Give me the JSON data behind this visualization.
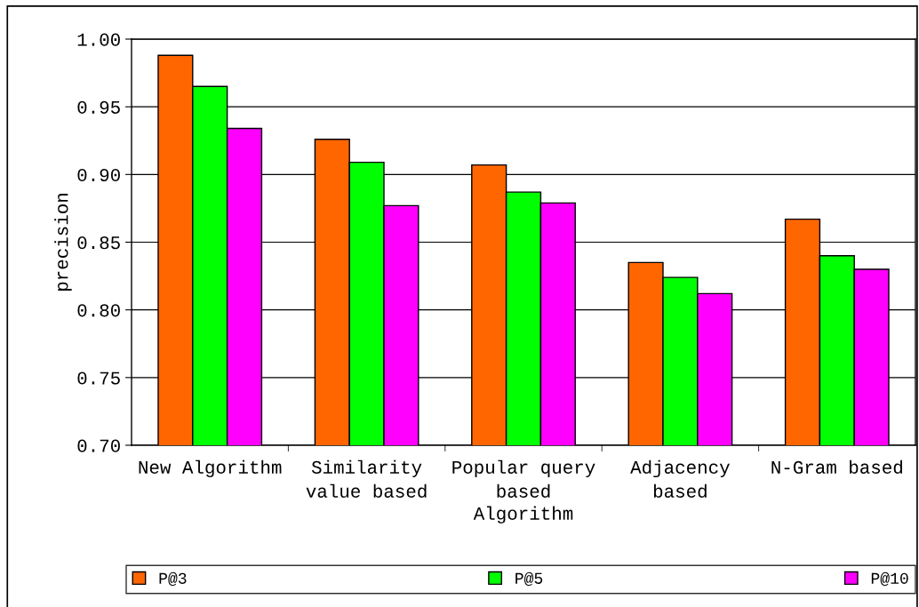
{
  "chart_data": {
    "type": "bar",
    "xlabel": "Algorithm",
    "ylabel": "precision",
    "categories": [
      "New Algorithm",
      "Similarity\nvalue based",
      "Popular query\nbased",
      "Adjacency\nbased",
      "N-Gram based"
    ],
    "series": [
      {
        "name": "P@3",
        "color": "#ff6600",
        "values": [
          0.988,
          0.926,
          0.907,
          0.835,
          0.867
        ]
      },
      {
        "name": "P@5",
        "color": "#00ff00",
        "values": [
          0.965,
          0.909,
          0.887,
          0.824,
          0.84
        ]
      },
      {
        "name": "P@10",
        "color": "#ff00ff",
        "values": [
          0.934,
          0.877,
          0.879,
          0.812,
          0.83
        ]
      }
    ],
    "ylim": [
      0.7,
      1.0
    ],
    "yticks": [
      {
        "value": 0.7,
        "label": "0.70"
      },
      {
        "value": 0.75,
        "label": "0.75"
      },
      {
        "value": 0.8,
        "label": "0.80"
      },
      {
        "value": 0.85,
        "label": "0.85"
      },
      {
        "value": 0.9,
        "label": "0.90"
      },
      {
        "value": 0.95,
        "label": "0.95"
      },
      {
        "value": 1.0,
        "label": "1.00"
      }
    ],
    "grid": "y",
    "legend": "bottom"
  }
}
